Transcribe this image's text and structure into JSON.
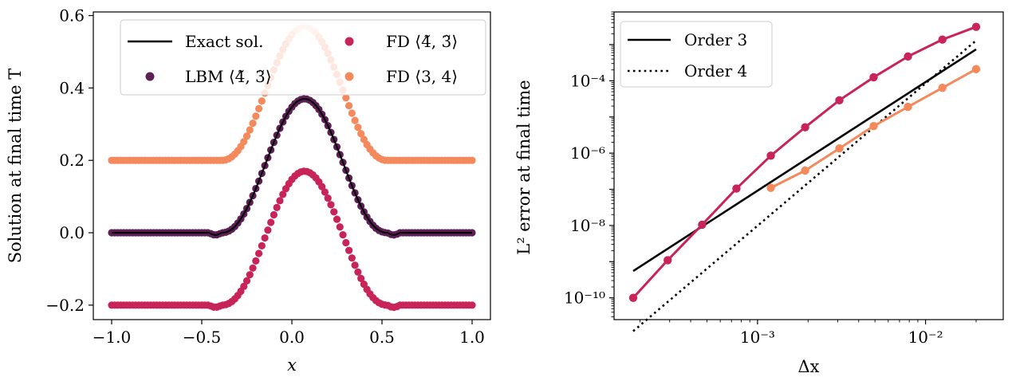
{
  "chart_data": [
    {
      "type": "scatter",
      "xlabel": "x",
      "ylabel": "Solution at final time T",
      "xlim": [
        -1.0,
        1.0
      ],
      "ylim": [
        -0.24,
        0.61
      ],
      "xticks": [
        -1.0,
        -0.5,
        0.0,
        0.5,
        1.0
      ],
      "xtick_labels": [
        "−1.0",
        "−0.5",
        "0.0",
        "0.5",
        "1.0"
      ],
      "yticks": [
        -0.2,
        0.0,
        0.2,
        0.4,
        0.6
      ],
      "ytick_labels": [
        "−0.2",
        "0.0",
        "0.2",
        "0.4",
        "0.6"
      ],
      "grid": false,
      "legend": {
        "placement": "top-center",
        "columns": 2
      },
      "pulse": {
        "center": 0.07,
        "half_width": 0.46,
        "amplitude": 0.37,
        "shape": "smooth compact bump, flat elsewhere"
      },
      "series": [
        {
          "name": "Exact sol.",
          "kind": "line",
          "color": "#000000",
          "offset": 0.0,
          "amplitude": 0.37,
          "points": 0
        },
        {
          "name": "LBM ⟨4̃, 3̃⟩",
          "kind": "markers",
          "color": "#5c1f56",
          "offset": 0.0,
          "amplitude": 0.37,
          "points": 121,
          "dip": -0.006
        },
        {
          "name": "FD ⟨4̃, 3̃⟩",
          "kind": "markers",
          "color": "#c8245a",
          "offset": -0.2,
          "amplitude": 0.37,
          "points": 121,
          "dip": -0.006
        },
        {
          "name": "FD ⟨3, 4⟩",
          "kind": "markers",
          "color": "#f4895c",
          "offset": 0.2,
          "amplitude": 0.37,
          "points": 121,
          "dip": 0.0
        }
      ]
    },
    {
      "type": "line",
      "xlabel": "Δx",
      "ylabel": "L² error at final time",
      "xscale": "log",
      "yscale": "log",
      "xlim": [
        0.00014,
        0.029
      ],
      "ylim": [
        2.5e-11,
        0.008
      ],
      "xticks": [
        0.001,
        0.01
      ],
      "xtick_labels": [
        "10⁻³",
        "10⁻²"
      ],
      "yticks": [
        1e-10,
        1e-08,
        1e-06,
        0.0001
      ],
      "ytick_labels": [
        "10⁻¹⁰",
        "10⁻⁸",
        "10⁻⁶",
        "10⁻⁴"
      ],
      "grid": false,
      "legend": {
        "placement": "top-left"
      },
      "series": [
        {
          "name": "Order 3",
          "style": "solid",
          "color": "#000000",
          "x": [
            0.000182,
            0.02
          ],
          "y": [
            5.5e-10,
            0.00074
          ]
        },
        {
          "name": "Order 4",
          "style": "dotted",
          "color": "#000000",
          "x": [
            0.000182,
            0.02
          ],
          "y": [
            1.2e-11,
            0.0013
          ]
        },
        {
          "name": "",
          "style": "solid-markers",
          "color": "#c8245a",
          "x": [
            0.000182,
            0.000292,
            0.000468,
            0.000749,
            0.0012,
            0.00192,
            0.00307,
            0.00491,
            0.00786,
            0.0126,
            0.02
          ],
          "y": [
            1e-10,
            1.1e-09,
            1.05e-08,
            1.05e-07,
            8.5e-07,
            5.2e-06,
            2.9e-05,
            0.000125,
            0.00047,
            0.00138,
            0.0031
          ]
        },
        {
          "name": "",
          "style": "solid-markers",
          "color": "#f4895c",
          "x": [
            0.0012,
            0.00192,
            0.00307,
            0.00491,
            0.00786,
            0.0126,
            0.02
          ],
          "y": [
            1.1e-07,
            3.3e-07,
            1.35e-06,
            5.6e-06,
            1.9e-05,
            6.4e-05,
            0.00021
          ]
        }
      ]
    }
  ]
}
